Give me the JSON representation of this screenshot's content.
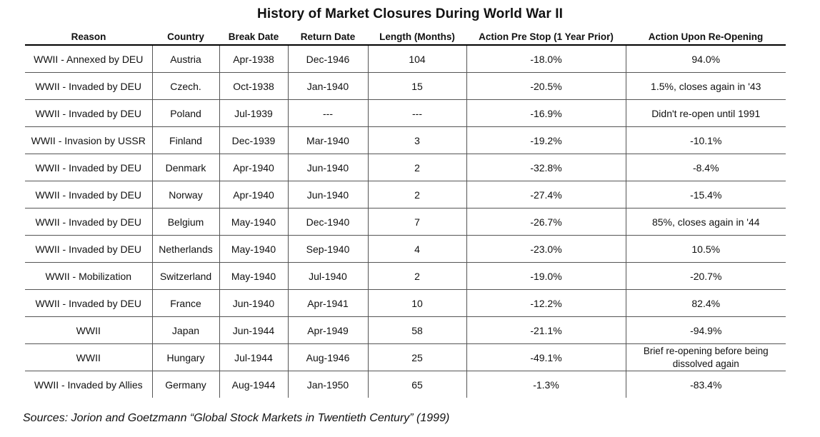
{
  "title": "History of Market Closures During World War II",
  "columns": [
    "Reason",
    "Country",
    "Break Date",
    "Return Date",
    "Length (Months)",
    "Action Pre Stop (1 Year Prior)",
    "Action Upon Re-Opening"
  ],
  "rows": [
    [
      "WWII - Annexed by DEU",
      "Austria",
      "Apr-1938",
      "Dec-1946",
      "104",
      "-18.0%",
      "94.0%"
    ],
    [
      "WWII - Invaded by DEU",
      "Czech.",
      "Oct-1938",
      "Jan-1940",
      "15",
      "-20.5%",
      "1.5%, closes again in '43"
    ],
    [
      "WWII - Invaded by DEU",
      "Poland",
      "Jul-1939",
      "---",
      "---",
      "-16.9%",
      "Didn't re-open until 1991"
    ],
    [
      "WWII - Invasion by USSR",
      "Finland",
      "Dec-1939",
      "Mar-1940",
      "3",
      "-19.2%",
      "-10.1%"
    ],
    [
      "WWII - Invaded by DEU",
      "Denmark",
      "Apr-1940",
      "Jun-1940",
      "2",
      "-32.8%",
      "-8.4%"
    ],
    [
      "WWII - Invaded by DEU",
      "Norway",
      "Apr-1940",
      "Jun-1940",
      "2",
      "-27.4%",
      "-15.4%"
    ],
    [
      "WWII - Invaded by DEU",
      "Belgium",
      "May-1940",
      "Dec-1940",
      "7",
      "-26.7%",
      "85%, closes again in '44"
    ],
    [
      "WWII - Invaded by DEU",
      "Netherlands",
      "May-1940",
      "Sep-1940",
      "4",
      "-23.0%",
      "10.5%"
    ],
    [
      "WWII - Mobilization",
      "Switzerland",
      "May-1940",
      "Jul-1940",
      "2",
      "-19.0%",
      "-20.7%"
    ],
    [
      "WWII - Invaded by DEU",
      "France",
      "Jun-1940",
      "Apr-1941",
      "10",
      "-12.2%",
      "82.4%"
    ],
    [
      "WWII",
      "Japan",
      "Jun-1944",
      "Apr-1949",
      "58",
      "-21.1%",
      "-94.9%"
    ],
    [
      "WWII",
      "Hungary",
      "Jul-1944",
      "Aug-1946",
      "25",
      "-49.1%",
      "Brief re-opening  before being dissolved again"
    ],
    [
      "WWII - Invaded by Allies",
      "Germany",
      "Aug-1944",
      "Jan-1950",
      "65",
      "-1.3%",
      "-83.4%"
    ]
  ],
  "source": "Sources: Jorion and Goetzmann “Global Stock Markets in Twentieth Century” (1999)"
}
